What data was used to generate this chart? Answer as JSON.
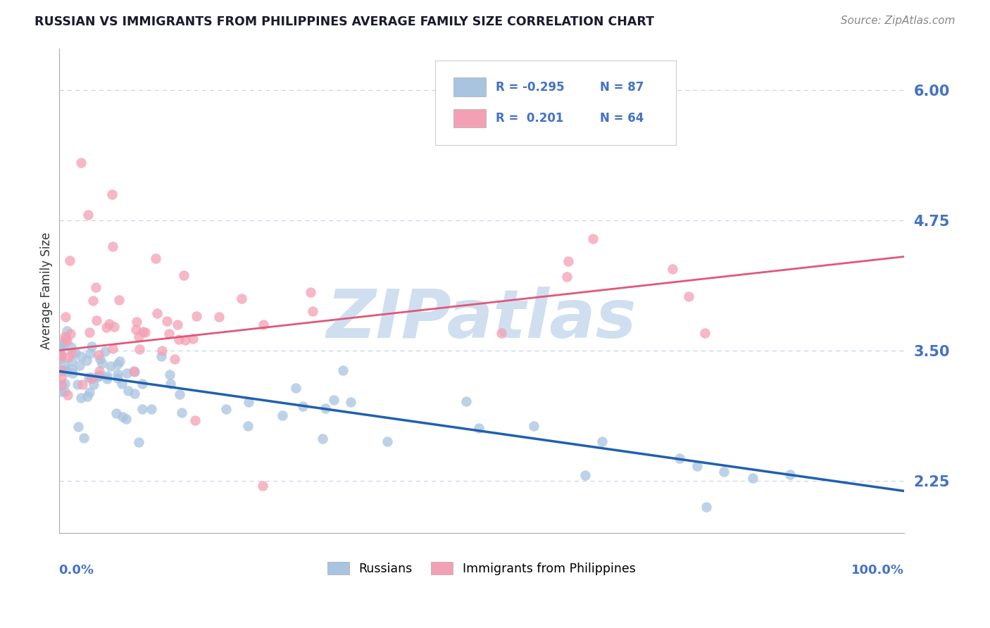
{
  "title": "RUSSIAN VS IMMIGRANTS FROM PHILIPPINES AVERAGE FAMILY SIZE CORRELATION CHART",
  "source": "Source: ZipAtlas.com",
  "ylabel": "Average Family Size",
  "yticks": [
    2.25,
    3.5,
    4.75,
    6.0
  ],
  "xmin": 0.0,
  "xmax": 100.0,
  "ymin": 1.75,
  "ymax": 6.4,
  "russian_color": "#a8c4e0",
  "philippine_color": "#f4a0b4",
  "russian_line_color": "#2060b0",
  "philippine_line_color": "#e05878",
  "axis_label_color": "#4472c4",
  "title_color": "#1a1a2e",
  "watermark_color": "#d0dff0",
  "background_color": "#ffffff",
  "grid_color": "#c8d4e4",
  "rus_intercept": 3.3,
  "rus_slope": -0.0115,
  "phi_intercept": 3.5,
  "phi_slope": 0.009,
  "legend_texts": [
    "R = -0.295  N = 87",
    "R =  0.201  N = 64"
  ],
  "bottom_legend": [
    "Russians",
    "Immigrants from Philippines"
  ]
}
